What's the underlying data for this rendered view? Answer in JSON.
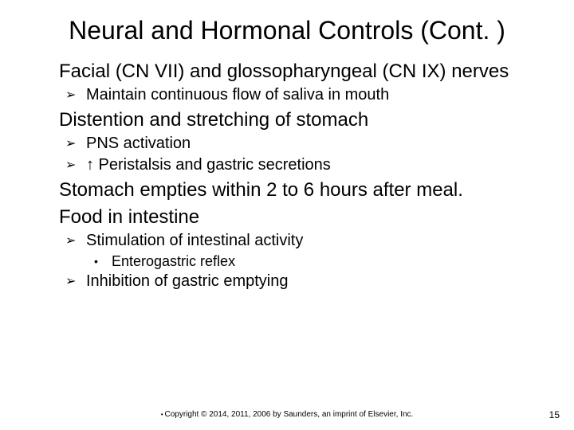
{
  "title": "Neural and Hormonal Controls (Cont. )",
  "items": [
    {
      "level": 1,
      "text": "Facial (CN VII) and glossopharyngeal (CN IX) nerves"
    },
    {
      "level": 2,
      "text": "Maintain continuous flow of saliva in mouth"
    },
    {
      "level": 1,
      "text": "Distention and stretching of stomach"
    },
    {
      "level": 2,
      "text": "PNS activation"
    },
    {
      "level": 2,
      "text": "↑ Peristalsis and gastric secretions"
    },
    {
      "level": 1,
      "text": "Stomach empties within 2 to 6 hours after meal."
    },
    {
      "level": 1,
      "text": "Food in intestine"
    },
    {
      "level": 2,
      "text": "Stimulation of intestinal activity"
    },
    {
      "level": 3,
      "text": "Enterogastric reflex"
    },
    {
      "level": 2,
      "text": "Inhibition of gastric emptying"
    }
  ],
  "bullets": {
    "l1": "",
    "l2": "➢",
    "l3": "•"
  },
  "footer": "Copyright © 2014, 2011, 2006 by Saunders, an imprint of Elsevier, Inc.",
  "page_number": "15",
  "colors": {
    "text": "#000000",
    "background": "#ffffff"
  },
  "fonts": {
    "title_size": 32,
    "l1_size": 24,
    "l2_size": 20,
    "l3_size": 18,
    "footer_size": 10
  }
}
